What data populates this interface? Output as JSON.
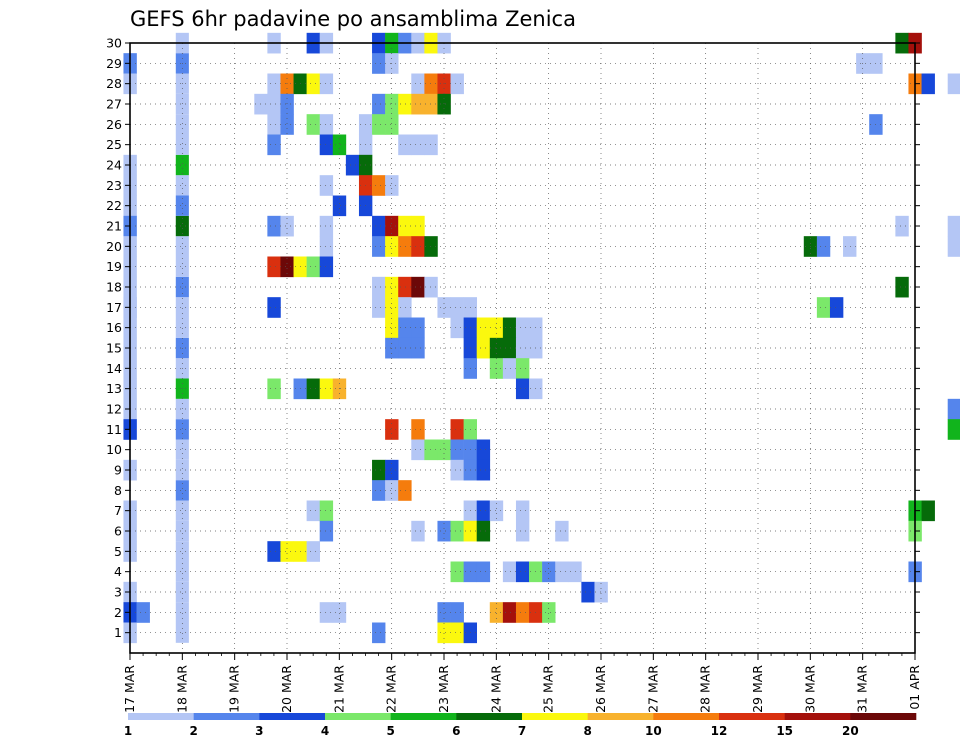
{
  "chart_data": {
    "type": "heatmap",
    "title": "GEFS 6hr padavine po ansamblima Zenica",
    "xlabel": "",
    "ylabel": "",
    "x_ticks": [
      "17 MAR",
      "18 MAR",
      "19 MAR",
      "20 MAR",
      "21 MAR",
      "22 MAR",
      "23 MAR",
      "24 MAR",
      "25 MAR",
      "26 MAR",
      "27 MAR",
      "28 MAR",
      "29 MAR",
      "30 MAR",
      "31 MAR",
      "01 APR"
    ],
    "y_ticks": [
      "1",
      "2",
      "3",
      "4",
      "5",
      "6",
      "7",
      "8",
      "9",
      "10",
      "11",
      "12",
      "13",
      "14",
      "15",
      "16",
      "17",
      "18",
      "19",
      "20",
      "21",
      "22",
      "23",
      "24",
      "25",
      "26",
      "27",
      "28",
      "29",
      "30"
    ],
    "ylim": [
      0,
      30
    ],
    "xlim": [
      "17 MAR",
      "01 APR"
    ],
    "grid": true,
    "colorbar": {
      "labels": [
        "1",
        "2",
        "3",
        "4",
        "5",
        "6",
        "7",
        "8",
        "10",
        "12",
        "15",
        "20"
      ],
      "colors": [
        "#b4c6f5",
        "#5585ec",
        "#1748d9",
        "#7be86a",
        "#11b41c",
        "#066b0a",
        "#fbf80e",
        "#f8b22d",
        "#f57c0d",
        "#d9300f",
        "#a4100b",
        "#6c0808"
      ]
    },
    "cells_note": "each cell: [member (1-30), time step index (6h steps from 17 MAR 00Z), color class index 0-11]",
    "cells": [
      [
        30,
        11,
        0
      ],
      [
        30,
        14,
        2
      ],
      [
        30,
        15,
        0
      ],
      [
        30,
        19,
        2
      ],
      [
        30,
        20,
        4
      ],
      [
        30,
        21,
        1
      ],
      [
        30,
        22,
        0
      ],
      [
        30,
        23,
        6
      ],
      [
        30,
        24,
        0
      ],
      [
        30,
        59,
        5
      ],
      [
        30,
        60,
        10
      ],
      [
        30,
        65,
        0
      ],
      [
        30,
        66,
        4
      ],
      [
        29,
        0,
        1
      ],
      [
        29,
        19,
        1
      ],
      [
        29,
        20,
        0
      ],
      [
        29,
        56,
        0
      ],
      [
        29,
        57,
        0
      ],
      [
        29,
        66,
        5
      ],
      [
        29,
        68,
        4
      ],
      [
        28,
        0,
        0
      ],
      [
        28,
        11,
        0
      ],
      [
        28,
        12,
        8
      ],
      [
        28,
        13,
        5
      ],
      [
        28,
        14,
        6
      ],
      [
        28,
        15,
        0
      ],
      [
        28,
        22,
        0
      ],
      [
        28,
        23,
        8
      ],
      [
        28,
        24,
        9
      ],
      [
        28,
        25,
        0
      ],
      [
        28,
        60,
        8
      ],
      [
        28,
        61,
        2
      ],
      [
        28,
        63,
        0
      ],
      [
        28,
        65,
        0
      ],
      [
        28,
        66,
        0
      ],
      [
        27,
        10,
        0
      ],
      [
        27,
        11,
        0
      ],
      [
        27,
        12,
        1
      ],
      [
        27,
        19,
        1
      ],
      [
        27,
        20,
        3
      ],
      [
        27,
        21,
        6
      ],
      [
        27,
        22,
        7
      ],
      [
        27,
        23,
        7
      ],
      [
        27,
        24,
        5
      ],
      [
        27,
        69,
        11
      ],
      [
        26,
        11,
        0
      ],
      [
        26,
        12,
        1
      ],
      [
        26,
        14,
        3
      ],
      [
        26,
        15,
        0
      ],
      [
        26,
        18,
        0
      ],
      [
        26,
        19,
        3
      ],
      [
        26,
        20,
        3
      ],
      [
        26,
        57,
        1
      ],
      [
        25,
        11,
        1
      ],
      [
        25,
        15,
        2
      ],
      [
        25,
        16,
        4
      ],
      [
        25,
        18,
        0
      ],
      [
        25,
        21,
        0
      ],
      [
        25,
        22,
        0
      ],
      [
        25,
        23,
        0
      ],
      [
        24,
        0,
        0
      ],
      [
        24,
        17,
        2
      ],
      [
        24,
        18,
        5
      ],
      [
        23,
        0,
        0
      ],
      [
        23,
        15,
        0
      ],
      [
        23,
        18,
        9
      ],
      [
        23,
        19,
        8
      ],
      [
        23,
        20,
        0
      ],
      [
        23,
        69,
        2
      ],
      [
        22,
        0,
        0
      ],
      [
        22,
        16,
        2
      ],
      [
        22,
        18,
        2
      ],
      [
        21,
        0,
        1
      ],
      [
        21,
        11,
        1
      ],
      [
        21,
        12,
        0
      ],
      [
        21,
        15,
        0
      ],
      [
        21,
        19,
        2
      ],
      [
        21,
        20,
        10
      ],
      [
        21,
        21,
        6
      ],
      [
        21,
        22,
        6
      ],
      [
        21,
        59,
        0
      ],
      [
        21,
        63,
        0
      ],
      [
        21,
        66,
        0
      ],
      [
        20,
        0,
        0
      ],
      [
        20,
        15,
        0
      ],
      [
        20,
        19,
        1
      ],
      [
        20,
        20,
        6
      ],
      [
        20,
        21,
        8
      ],
      [
        20,
        22,
        9
      ],
      [
        20,
        23,
        5
      ],
      [
        20,
        52,
        5
      ],
      [
        20,
        53,
        1
      ],
      [
        20,
        55,
        0
      ],
      [
        20,
        63,
        0
      ],
      [
        20,
        67,
        1
      ],
      [
        19,
        0,
        0
      ],
      [
        19,
        11,
        9
      ],
      [
        19,
        12,
        11
      ],
      [
        19,
        13,
        6
      ],
      [
        19,
        14,
        3
      ],
      [
        19,
        15,
        2
      ],
      [
        19,
        65,
        5
      ],
      [
        19,
        66,
        11
      ],
      [
        19,
        67,
        1
      ],
      [
        19,
        68,
        1
      ],
      [
        18,
        0,
        0
      ],
      [
        18,
        19,
        0
      ],
      [
        18,
        20,
        6
      ],
      [
        18,
        21,
        9
      ],
      [
        18,
        22,
        11
      ],
      [
        18,
        23,
        0
      ],
      [
        18,
        59,
        5
      ],
      [
        18,
        66,
        0
      ],
      [
        18,
        67,
        0
      ],
      [
        17,
        0,
        0
      ],
      [
        17,
        0,
        0
      ],
      [
        17,
        11,
        2
      ],
      [
        17,
        19,
        0
      ],
      [
        17,
        20,
        6
      ],
      [
        17,
        21,
        0
      ],
      [
        17,
        24,
        0
      ],
      [
        17,
        25,
        0
      ],
      [
        17,
        26,
        0
      ],
      [
        17,
        53,
        3
      ],
      [
        17,
        54,
        2
      ],
      [
        17,
        67,
        1
      ],
      [
        16,
        0,
        0
      ],
      [
        16,
        20,
        6
      ],
      [
        16,
        21,
        1
      ],
      [
        16,
        22,
        1
      ],
      [
        16,
        25,
        0
      ],
      [
        16,
        26,
        2
      ],
      [
        16,
        27,
        6
      ],
      [
        16,
        28,
        6
      ],
      [
        16,
        29,
        5
      ],
      [
        16,
        30,
        0
      ],
      [
        16,
        31,
        0
      ],
      [
        16,
        67,
        2
      ],
      [
        15,
        0,
        0
      ],
      [
        15,
        20,
        1
      ],
      [
        15,
        21,
        1
      ],
      [
        15,
        22,
        1
      ],
      [
        15,
        26,
        2
      ],
      [
        15,
        27,
        6
      ],
      [
        15,
        28,
        5
      ],
      [
        15,
        29,
        5
      ],
      [
        15,
        30,
        0
      ],
      [
        15,
        31,
        0
      ],
      [
        15,
        67,
        6
      ],
      [
        15,
        69,
        11
      ],
      [
        14,
        0,
        0
      ],
      [
        14,
        26,
        1
      ],
      [
        14,
        28,
        3
      ],
      [
        14,
        29,
        0
      ],
      [
        14,
        30,
        3
      ],
      [
        14,
        65,
        0
      ],
      [
        14,
        66,
        3
      ],
      [
        14,
        67,
        1
      ],
      [
        14,
        68,
        1
      ],
      [
        13,
        0,
        0
      ],
      [
        13,
        11,
        3
      ],
      [
        13,
        13,
        1
      ],
      [
        13,
        14,
        5
      ],
      [
        13,
        15,
        6
      ],
      [
        13,
        16,
        7
      ],
      [
        13,
        30,
        2
      ],
      [
        13,
        31,
        0
      ],
      [
        13,
        65,
        2
      ],
      [
        12,
        0,
        0
      ],
      [
        12,
        63,
        1
      ],
      [
        12,
        64,
        0
      ],
      [
        12,
        65,
        1
      ],
      [
        12,
        66,
        0
      ],
      [
        12,
        67,
        0
      ],
      [
        12,
        68,
        2
      ],
      [
        12,
        69,
        0
      ],
      [
        11,
        0,
        2
      ],
      [
        11,
        20,
        9
      ],
      [
        11,
        22,
        8
      ],
      [
        11,
        25,
        9
      ],
      [
        11,
        26,
        3
      ],
      [
        11,
        63,
        4
      ],
      [
        11,
        65,
        1
      ],
      [
        10,
        22,
        0
      ],
      [
        10,
        23,
        3
      ],
      [
        10,
        24,
        3
      ],
      [
        10,
        25,
        1
      ],
      [
        10,
        26,
        1
      ],
      [
        10,
        27,
        2
      ],
      [
        10,
        66,
        0
      ],
      [
        9,
        0,
        0
      ],
      [
        9,
        19,
        5
      ],
      [
        9,
        20,
        2
      ],
      [
        9,
        25,
        0
      ],
      [
        9,
        26,
        1
      ],
      [
        9,
        27,
        2
      ],
      [
        8,
        19,
        1
      ],
      [
        8,
        20,
        0
      ],
      [
        8,
        21,
        8
      ],
      [
        7,
        0,
        0
      ],
      [
        7,
        14,
        0
      ],
      [
        7,
        15,
        3
      ],
      [
        7,
        26,
        0
      ],
      [
        7,
        27,
        2
      ],
      [
        7,
        28,
        0
      ],
      [
        7,
        30,
        0
      ],
      [
        7,
        60,
        4
      ],
      [
        7,
        61,
        5
      ],
      [
        7,
        68,
        0
      ],
      [
        7,
        69,
        3
      ],
      [
        6,
        0,
        0
      ],
      [
        6,
        15,
        1
      ],
      [
        6,
        22,
        0
      ],
      [
        6,
        24,
        1
      ],
      [
        6,
        25,
        3
      ],
      [
        6,
        26,
        6
      ],
      [
        6,
        27,
        5
      ],
      [
        6,
        30,
        0
      ],
      [
        6,
        33,
        0
      ],
      [
        6,
        60,
        3
      ],
      [
        6,
        64,
        0
      ],
      [
        6,
        65,
        0
      ],
      [
        6,
        66,
        0
      ],
      [
        6,
        67,
        9
      ],
      [
        5,
        0,
        0
      ],
      [
        5,
        11,
        2
      ],
      [
        5,
        12,
        6
      ],
      [
        5,
        13,
        6
      ],
      [
        5,
        14,
        0
      ],
      [
        5,
        64,
        1
      ],
      [
        5,
        65,
        1
      ],
      [
        5,
        66,
        1
      ],
      [
        4,
        25,
        3
      ],
      [
        4,
        26,
        1
      ],
      [
        4,
        27,
        1
      ],
      [
        4,
        29,
        0
      ],
      [
        4,
        30,
        2
      ],
      [
        4,
        31,
        3
      ],
      [
        4,
        32,
        1
      ],
      [
        4,
        33,
        0
      ],
      [
        4,
        34,
        0
      ],
      [
        4,
        60,
        1
      ],
      [
        4,
        67,
        0
      ],
      [
        3,
        0,
        0
      ],
      [
        3,
        35,
        2
      ],
      [
        3,
        36,
        0
      ],
      [
        3,
        64,
        0
      ],
      [
        3,
        65,
        8
      ],
      [
        3,
        66,
        1
      ],
      [
        2,
        0,
        2
      ],
      [
        2,
        1,
        1
      ],
      [
        2,
        15,
        0
      ],
      [
        2,
        16,
        0
      ],
      [
        2,
        24,
        1
      ],
      [
        2,
        25,
        1
      ],
      [
        2,
        28,
        7
      ],
      [
        2,
        29,
        10
      ],
      [
        2,
        30,
        8
      ],
      [
        2,
        31,
        9
      ],
      [
        2,
        32,
        3
      ],
      [
        1,
        0,
        0
      ],
      [
        1,
        19,
        1
      ],
      [
        1,
        24,
        6
      ],
      [
        1,
        25,
        6
      ],
      [
        1,
        26,
        2
      ],
      [
        1,
        67,
        0
      ],
      [
        1,
        68,
        2
      ]
    ]
  }
}
